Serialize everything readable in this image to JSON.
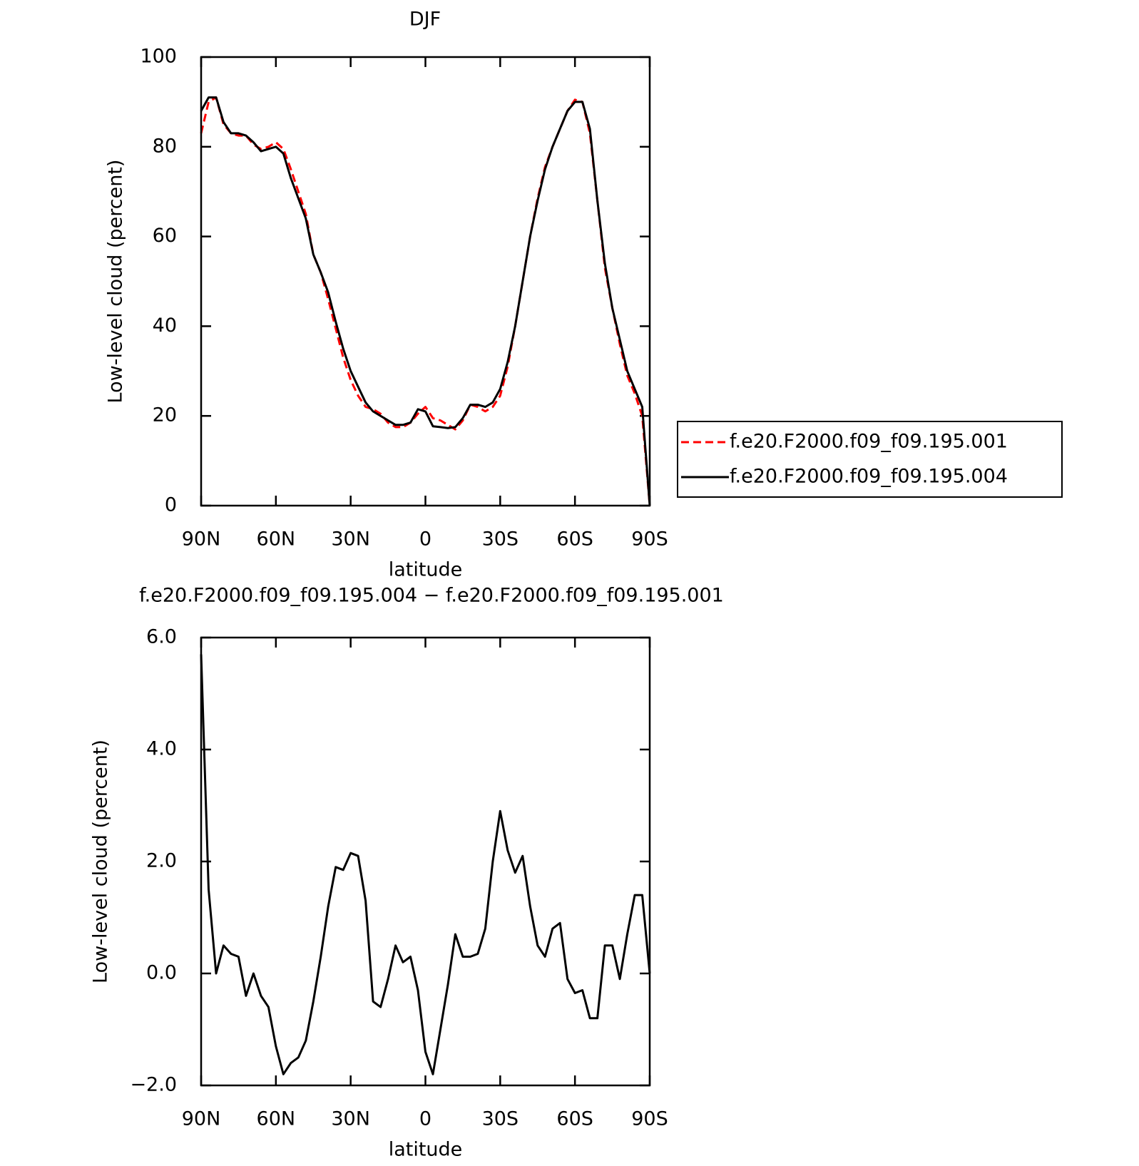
{
  "chart_data": [
    {
      "type": "line",
      "title": "DJF",
      "x_label": "latitude",
      "y_label": "Low-level cloud (percent)",
      "x": [
        90,
        87,
        84,
        81,
        78,
        75,
        72,
        69,
        66,
        63,
        60,
        57,
        54,
        51,
        48,
        45,
        42,
        39,
        36,
        33,
        30,
        27,
        24,
        21,
        18,
        15,
        12,
        9,
        6,
        3,
        0,
        -3,
        -6,
        -9,
        -12,
        -15,
        -18,
        -21,
        -24,
        -27,
        -30,
        -33,
        -36,
        -39,
        -42,
        -45,
        -48,
        -51,
        -54,
        -57,
        -60,
        -63,
        -66,
        -69,
        -72,
        -75,
        -78,
        -81,
        -84,
        -87,
        -90
      ],
      "xlim": [
        90,
        -90
      ],
      "xticks": [
        {
          "value": 90,
          "label": "90N"
        },
        {
          "value": 60,
          "label": "60N"
        },
        {
          "value": 30,
          "label": "30N"
        },
        0,
        {
          "value": -30,
          "label": "30S"
        },
        {
          "value": -60,
          "label": "60S"
        },
        {
          "value": -90,
          "label": "90S"
        }
      ],
      "ylim": [
        0,
        100
      ],
      "yticks": [
        0,
        20,
        40,
        60,
        80,
        100
      ],
      "legend": "right",
      "series": [
        {
          "name": "f.e20.F2000.f09_f09.195.001",
          "color": "#ff0000",
          "line_style": "dashed",
          "values": [
            83,
            90,
            91,
            85,
            83,
            82.5,
            82.5,
            80.5,
            79.5,
            80,
            81,
            79.5,
            75,
            70,
            65,
            56,
            52,
            46,
            39.5,
            33,
            28,
            24.5,
            22,
            21.5,
            20.5,
            18.5,
            17.5,
            17.5,
            18.5,
            20.5,
            22,
            19.5,
            19,
            18,
            17,
            19,
            22.5,
            22,
            21,
            22,
            24.5,
            31,
            40,
            50,
            60,
            68.5,
            75.5,
            80,
            84,
            88,
            90.5,
            90,
            83,
            68,
            53,
            44,
            36,
            29,
            25,
            20,
            0
          ]
        },
        {
          "name": "f.e20.F2000.f09_f09.195.004",
          "color": "#000000",
          "line_style": "solid",
          "values": [
            88,
            91,
            91,
            85.5,
            83,
            83,
            82.5,
            81,
            79,
            79.5,
            80,
            78.5,
            73,
            68.5,
            64,
            56,
            52,
            47.5,
            41,
            35,
            30,
            26.5,
            23,
            21,
            20,
            19,
            18,
            18,
            18.5,
            21.5,
            21,
            17.7,
            17.5,
            17.3,
            17.5,
            19.5,
            22.5,
            22.5,
            22,
            23,
            26,
            32,
            40,
            50,
            60,
            68,
            75,
            80,
            84,
            88,
            90,
            90,
            84,
            68,
            54,
            44,
            37,
            30,
            26,
            22,
            0
          ]
        }
      ]
    },
    {
      "type": "line",
      "title": "f.e20.F2000.f09_f09.195.004 − f.e20.F2000.f09_f09.195.001",
      "x_label": "latitude",
      "y_label": "Low-level cloud (percent)",
      "x": [
        90,
        87,
        84,
        81,
        78,
        75,
        72,
        69,
        66,
        63,
        60,
        57,
        54,
        51,
        48,
        45,
        42,
        39,
        36,
        33,
        30,
        27,
        24,
        21,
        18,
        15,
        12,
        9,
        6,
        3,
        0,
        -3,
        -6,
        -9,
        -12,
        -15,
        -18,
        -21,
        -24,
        -27,
        -30,
        -33,
        -36,
        -39,
        -42,
        -45,
        -48,
        -51,
        -54,
        -57,
        -60,
        -63,
        -66,
        -69,
        -72,
        -75,
        -78,
        -81,
        -84,
        -87,
        -90
      ],
      "xlim": [
        90,
        -90
      ],
      "xticks": [
        {
          "value": 90,
          "label": "90N"
        },
        {
          "value": 60,
          "label": "60N"
        },
        {
          "value": 30,
          "label": "30N"
        },
        0,
        {
          "value": -30,
          "label": "30S"
        },
        {
          "value": -60,
          "label": "60S"
        },
        {
          "value": -90,
          "label": "90S"
        }
      ],
      "ylim": [
        -2,
        6
      ],
      "yticks": [
        {
          "value": -2,
          "label": "−2.0"
        },
        {
          "value": 0,
          "label": "0.0"
        },
        {
          "value": 2,
          "label": "2.0"
        },
        {
          "value": 4,
          "label": "4.0"
        },
        {
          "value": 6,
          "label": "6.0"
        }
      ],
      "series": [
        {
          "color": "#000000",
          "line_style": "solid",
          "values": [
            5.7,
            1.5,
            0,
            0.5,
            0.35,
            0.3,
            -0.4,
            0,
            -0.4,
            -0.6,
            -1.3,
            -1.8,
            -1.6,
            -1.5,
            -1.2,
            -0.5,
            0.3,
            1.2,
            1.9,
            1.85,
            2.15,
            2.1,
            1.3,
            -0.5,
            -0.6,
            -0.1,
            0.5,
            0.2,
            0.3,
            -0.3,
            -1.4,
            -1.8,
            -1,
            -0.2,
            0.7,
            0.3,
            0.3,
            0.35,
            0.8,
            2,
            2.9,
            2.2,
            1.8,
            2.1,
            1.2,
            0.5,
            0.3,
            0.8,
            0.9,
            -0.1,
            -0.35,
            -0.3,
            -0.8,
            -0.8,
            0.5,
            0.5,
            -0.1,
            0.7,
            1.4,
            1.4,
            0
          ]
        }
      ]
    }
  ]
}
